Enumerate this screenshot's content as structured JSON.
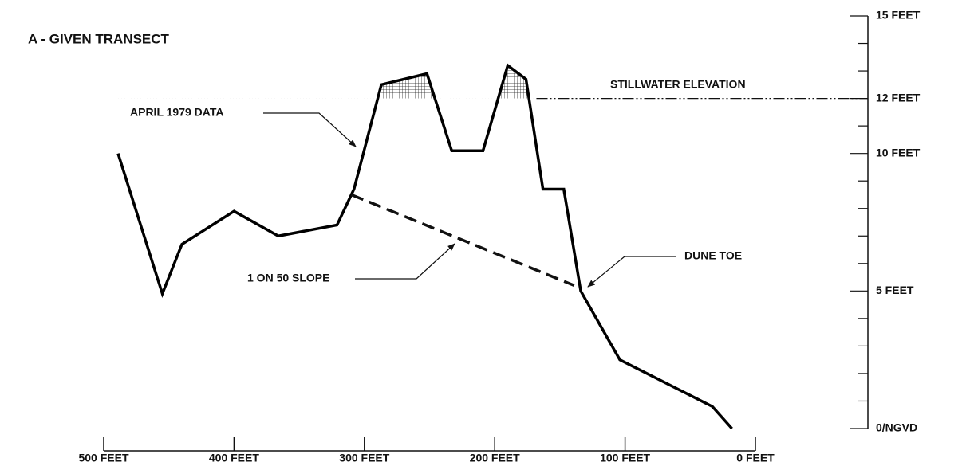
{
  "chart_data": {
    "type": "line",
    "title": "A - GIVEN TRANSECT",
    "x": [
      489,
      455,
      440,
      400,
      366,
      321,
      308,
      287,
      252,
      233,
      209,
      190,
      176,
      163,
      147,
      134,
      104,
      33,
      18
    ],
    "series": [
      {
        "name": "APRIL 1979 DATA",
        "color": "#000000",
        "values": [
          10.0,
          4.9,
          6.7,
          7.9,
          7.0,
          7.4,
          8.7,
          12.5,
          12.9,
          10.1,
          10.1,
          13.2,
          12.7,
          8.7,
          8.7,
          5.0,
          2.5,
          0.8,
          0
        ]
      }
    ],
    "slope": {
      "name": "1 ON 50 SLOPE",
      "x": [
        310,
        139
      ],
      "values": [
        8.5,
        5.2
      ]
    },
    "stillwater": {
      "name": "STILLWATER ELEVATION",
      "x_start": 168,
      "value": 12
    },
    "annotations": [
      "DUNE TOE"
    ],
    "xlim": [
      500,
      0
    ],
    "xticks": [
      {
        "value": 500,
        "label": "500 FEET"
      },
      {
        "value": 400,
        "label": "400 FEET"
      },
      {
        "value": 300,
        "label": "300 FEET"
      },
      {
        "value": 200,
        "label": "200 FEET"
      },
      {
        "value": 100,
        "label": "100 FEET"
      },
      {
        "value": 0,
        "label": "0 FEET"
      }
    ],
    "ylim": [
      0,
      15
    ],
    "yticks": [
      {
        "value": 15,
        "label": "15 FEET"
      },
      {
        "value": 12,
        "label": "12 FEET"
      },
      {
        "value": 10,
        "label": "10 FEET"
      },
      {
        "value": 5,
        "label": "5 FEET"
      },
      {
        "value": 0,
        "label": "0/NGVD"
      }
    ],
    "yminor_ticks": [
      1,
      2,
      3,
      4,
      6,
      7,
      8,
      9,
      11,
      13,
      14
    ]
  }
}
